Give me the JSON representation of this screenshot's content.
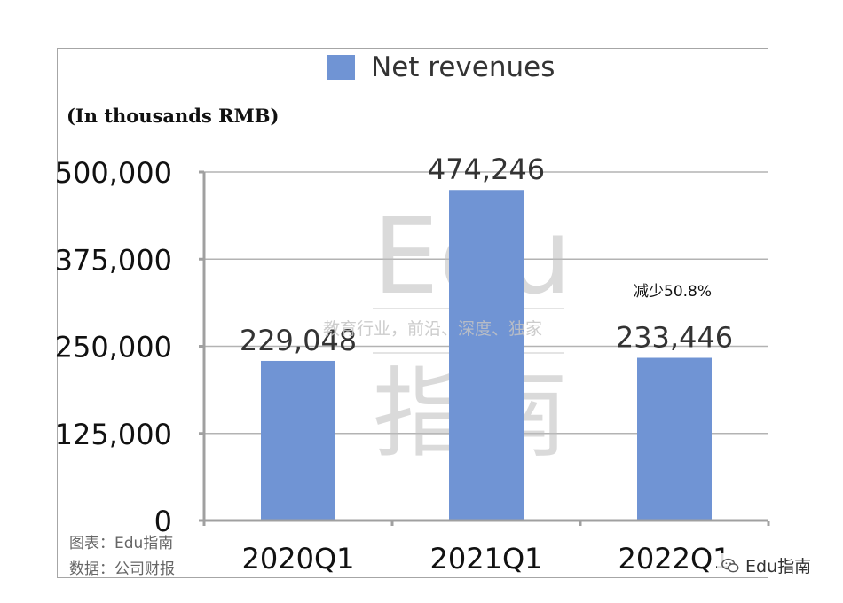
{
  "chart_data": {
    "type": "bar",
    "categories": [
      "2020Q1",
      "2021Q1",
      "2022Q1"
    ],
    "series": [
      {
        "name": "Net revenues",
        "values": [
          229048,
          474246,
          233446
        ]
      }
    ],
    "data_labels": [
      "229,048",
      "474,246",
      "233,446"
    ],
    "y_ticks": [
      "0",
      "125,000",
      "250,000",
      "375,000",
      "500,000"
    ],
    "ylim": [
      0,
      500000
    ],
    "y_tick_values": [
      0,
      125000,
      250000,
      375000,
      500000
    ],
    "unit_note": "(In thousands RMB)",
    "annotation": "减少50.8%",
    "legend_position": "top",
    "grid": true,
    "bar_color": "#7094d4"
  },
  "watermark": {
    "latin": "Edu",
    "cjk": "指南",
    "tagline": "教育行业，前沿、深度、独家"
  },
  "source": {
    "chart_credit": "图表：Edu指南",
    "data_credit": "数据：公司财报"
  },
  "badge": {
    "label": "Edu指南",
    "icon": "wechat-icon"
  }
}
